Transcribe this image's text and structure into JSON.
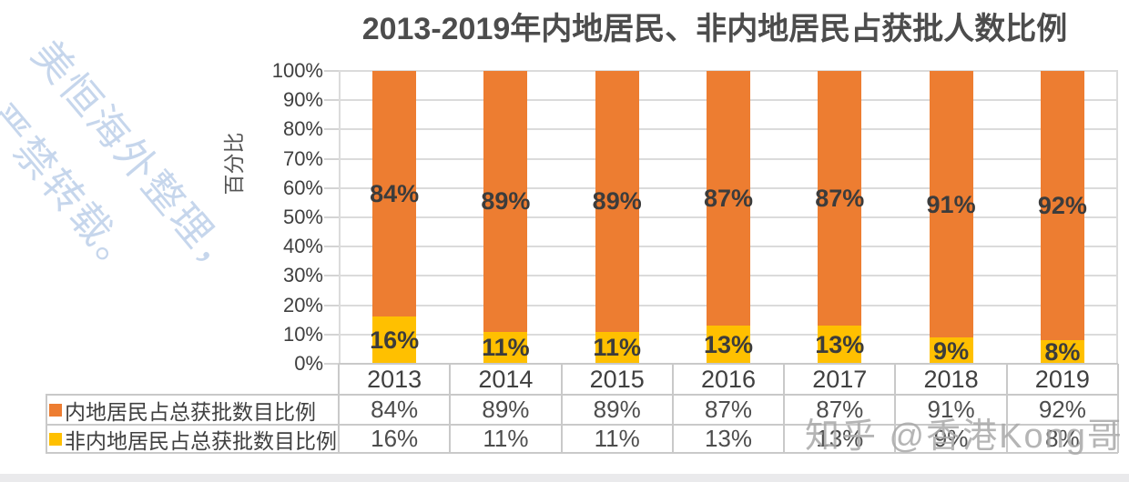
{
  "title": "2013-2019年内地居民、非内地居民占获批人数比例",
  "watermark_diagonal": {
    "line1": "美恒海外整理，",
    "line2": "严禁转载。",
    "color": "#BDD0E9"
  },
  "watermark_zhihu": {
    "text": "知乎 @香港Kong哥",
    "color": "#A9A9A9"
  },
  "chart_data": {
    "type": "bar",
    "stacked": true,
    "title": "2013-2019年内地居民、非内地居民占获批人数比例",
    "categories": [
      "2013",
      "2014",
      "2015",
      "2016",
      "2017",
      "2018",
      "2019"
    ],
    "series": [
      {
        "name": "内地居民占总获批数目比例",
        "color": "#ED7D31",
        "values": [
          84,
          89,
          89,
          87,
          87,
          91,
          92
        ]
      },
      {
        "name": "非内地居民占总获批数目比例",
        "color": "#FFC000",
        "values": [
          16,
          11,
          11,
          13,
          13,
          9,
          8
        ]
      }
    ],
    "ylabel": "百分比",
    "xlabel": "",
    "ylim": [
      0,
      100
    ],
    "y_ticks": [
      "0%",
      "10%",
      "20%",
      "30%",
      "40%",
      "50%",
      "60%",
      "70%",
      "80%",
      "90%",
      "100%"
    ],
    "grid": "horizontal",
    "data_labels": "percent-inside-segments",
    "legend_position": "table-below-chart"
  }
}
